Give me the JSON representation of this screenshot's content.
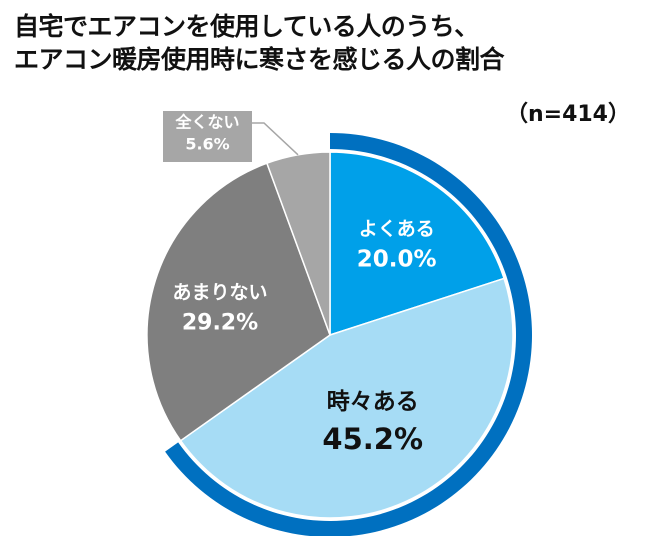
{
  "title_lines": [
    "自宅でエアコンを使用している人のうち、",
    "エアコン暖房使用時に寒さを感じる人の割合"
  ],
  "sample_size": "（n=414）",
  "chart_data": {
    "type": "pie",
    "title": "自宅でエアコンを使用している人のうち、エアコン暖房使用時に寒さを感じる人の割合",
    "subtitle": "（n=414）",
    "unit": "%",
    "start": "12 o'clock",
    "direction": "clockwise",
    "slices": [
      {
        "label": "よくある",
        "value": 20.0,
        "value_label": "20.0%",
        "color": "#00a0e9",
        "text_color": "#ffffff"
      },
      {
        "label": "時々ある",
        "value": 45.2,
        "value_label": "45.2%",
        "color": "#a6dcf5",
        "text_color": "#111111"
      },
      {
        "label": "あまりない",
        "value": 29.2,
        "value_label": "29.2%",
        "color": "#7f7f7f",
        "text_color": "#ffffff"
      },
      {
        "label": "全くない",
        "value": 5.6,
        "value_label": "5.6%",
        "color": "#a6a6a6",
        "text_color": "#ffffff"
      }
    ],
    "highlight": {
      "slices": [
        "よくある",
        "時々ある"
      ],
      "color": "#0070c0"
    }
  }
}
